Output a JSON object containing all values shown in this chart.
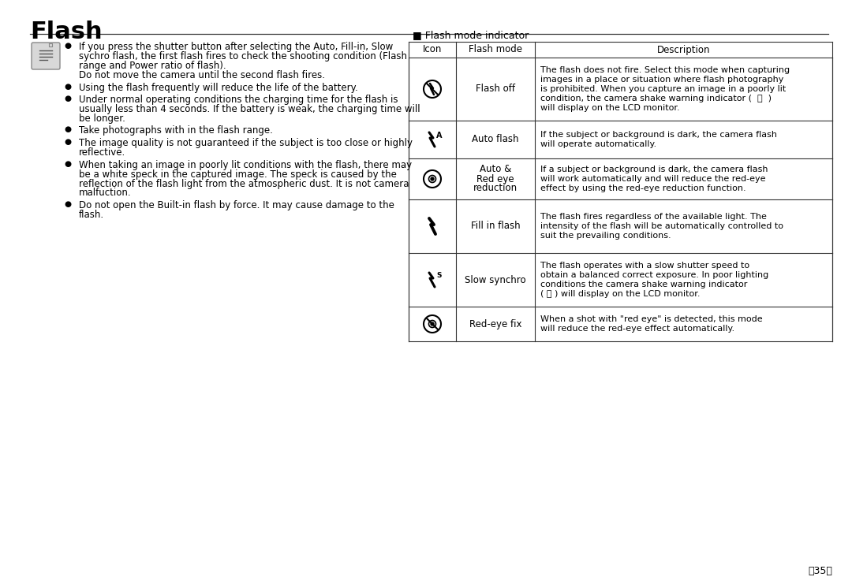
{
  "title": "Flash",
  "bg_color": "#ffffff",
  "text_color": "#000000",
  "left_bullets": [
    [
      "If you press the shutter button after selecting the Auto, Fill-in, Slow",
      "sychro flash, the first flash fires to check the shooting condition (Flash",
      "range and Power ratio of flash).",
      "Do not move the camera until the second flash fires."
    ],
    [
      "Using the flash frequently will reduce the life of the battery."
    ],
    [
      "Under normal operating conditions the charging time for the flash is",
      "usually less than 4 seconds. If the battery is weak, the charging time will",
      "be longer."
    ],
    [
      "Take photographs with in the flash range."
    ],
    [
      "The image quality is not guaranteed if the subject is too close or highly",
      "reflective."
    ],
    [
      "When taking an image in poorly lit conditions with the flash, there may",
      "be a white speck in the captured image. The speck is caused by the",
      "reflection of the flash light from the atmospheric dust. It is not camera",
      "malfuction."
    ],
    [
      "Do not open the Built-in flash by force. It may cause damage to the",
      "flash."
    ]
  ],
  "table_label": "Flash mode indicator",
  "table_cols": [
    "Icon",
    "Flash mode",
    "Description"
  ],
  "table_rows": [
    {
      "icon_type": "flash_off",
      "mode": "Flash off",
      "description": [
        "The flash does not fire. Select this mode when capturing",
        "images in a place or situation where flash photography",
        "is prohibited. When you capture an image in a poorly lit",
        "condition, the camera shake warning indicator (  ⓮  )",
        "will display on the LCD monitor."
      ]
    },
    {
      "icon_type": "auto_flash",
      "mode": "Auto flash",
      "description": [
        "If the subject or background is dark, the camera flash",
        "will operate automatically."
      ]
    },
    {
      "icon_type": "auto_red_eye",
      "mode": "Auto &\nRed eye\nreduction",
      "description": [
        "If a subject or background is dark, the camera flash",
        "will work automatically and will reduce the red-eye",
        "effect by using the red-eye reduction function."
      ]
    },
    {
      "icon_type": "fill_flash",
      "mode": "Fill in flash",
      "description": [
        "The flash fires regardless of the available light. The",
        "intensity of the flash will be automatically controlled to",
        "suit the prevailing conditions."
      ]
    },
    {
      "icon_type": "slow_synchro",
      "mode": "Slow synchro",
      "description": [
        "The flash operates with a slow shutter speed to",
        "obtain a balanced correct exposure. In poor lighting",
        "conditions the camera shake warning indicator",
        "( ⓮ ) will display on the LCD monitor."
      ]
    },
    {
      "icon_type": "red_eye_fix",
      "mode": "Red-eye fix",
      "description": [
        "When a shot with \"red eye\" is detected, this mode",
        "will reduce the red-eye effect automatically."
      ]
    }
  ],
  "title_fontsize": 22,
  "body_fontsize": 8.5,
  "table_fontsize": 8.5,
  "small_fontsize": 8.0
}
